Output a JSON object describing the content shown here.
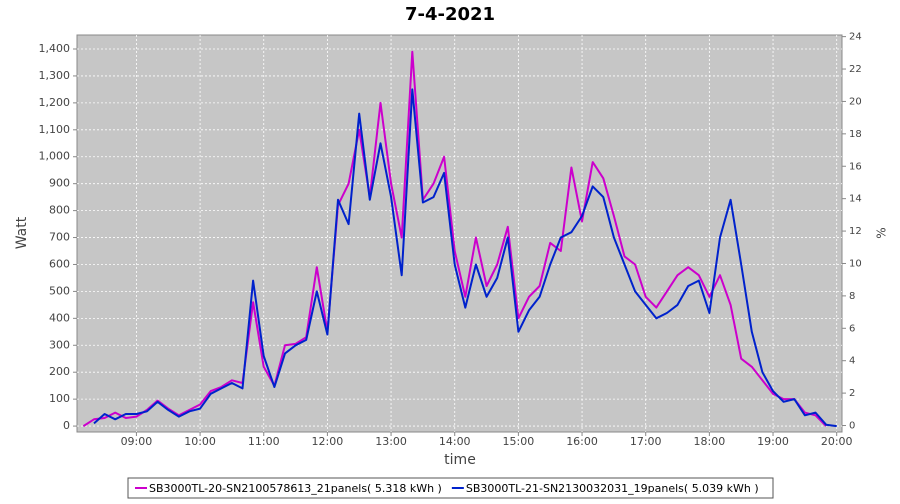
{
  "chart_data": {
    "type": "line",
    "title": "7-4-2021",
    "x_label": "time",
    "y_label": "Watt",
    "y2_label": "%",
    "x": [
      "08:10",
      "08:20",
      "08:30",
      "08:40",
      "08:50",
      "09:00",
      "09:10",
      "09:20",
      "09:30",
      "09:40",
      "09:50",
      "10:00",
      "10:10",
      "10:20",
      "10:30",
      "10:40",
      "10:50",
      "11:00",
      "11:10",
      "11:20",
      "11:30",
      "11:40",
      "11:50",
      "12:00",
      "12:10",
      "12:20",
      "12:30",
      "12:40",
      "12:50",
      "13:00",
      "13:10",
      "13:20",
      "13:30",
      "13:40",
      "13:50",
      "14:00",
      "14:10",
      "14:20",
      "14:30",
      "14:40",
      "14:50",
      "15:00",
      "15:10",
      "15:20",
      "15:30",
      "15:40",
      "15:50",
      "16:00",
      "16:10",
      "16:20",
      "16:30",
      "16:40",
      "16:50",
      "17:00",
      "17:10",
      "17:20",
      "17:30",
      "17:40",
      "17:50",
      "18:00",
      "18:10",
      "18:20",
      "18:30",
      "18:40",
      "18:50",
      "19:00",
      "19:10",
      "19:20",
      "19:30",
      "19:40",
      "19:50",
      "20:00"
    ],
    "series": [
      {
        "name": "SB3000TL-20-SN2100578613_21panels( 5.318 kWh )",
        "color": "#cc00cc",
        "values": [
          0,
          25,
          30,
          50,
          30,
          35,
          60,
          95,
          65,
          40,
          60,
          80,
          130,
          145,
          170,
          160,
          460,
          220,
          150,
          300,
          305,
          330,
          590,
          350,
          820,
          900,
          1100,
          850,
          1200,
          900,
          700,
          1390,
          840,
          900,
          1000,
          650,
          480,
          700,
          520,
          600,
          740,
          400,
          480,
          520,
          680,
          650,
          960,
          760,
          980,
          920,
          780,
          630,
          600,
          480,
          440,
          500,
          560,
          590,
          560,
          480,
          560,
          450,
          250,
          220,
          170,
          120,
          100,
          100,
          50,
          40,
          0,
          null
        ]
      },
      {
        "name": "SB3000TL-21-SN2130032031_19panels( 5.039 kWh )",
        "color": "#0022cc",
        "values": [
          null,
          10,
          45,
          25,
          45,
          45,
          55,
          90,
          60,
          35,
          55,
          65,
          120,
          140,
          160,
          140,
          540,
          260,
          145,
          270,
          300,
          320,
          500,
          340,
          840,
          750,
          1160,
          840,
          1050,
          850,
          560,
          1250,
          830,
          850,
          940,
          600,
          440,
          600,
          480,
          550,
          700,
          350,
          430,
          480,
          600,
          700,
          720,
          780,
          890,
          850,
          700,
          600,
          500,
          450,
          400,
          420,
          450,
          520,
          540,
          420,
          700,
          840,
          600,
          350,
          200,
          130,
          90,
          100,
          40,
          50,
          5,
          0
        ]
      }
    ],
    "xlim": [
      "08:04",
      "20:05"
    ],
    "xticks": [
      "09:00",
      "10:00",
      "11:00",
      "12:00",
      "13:00",
      "14:00",
      "15:00",
      "16:00",
      "17:00",
      "18:00",
      "19:00",
      "20:00"
    ],
    "ylim": [
      -22,
      1452
    ],
    "yticks": [
      0,
      100,
      200,
      300,
      400,
      500,
      600,
      700,
      800,
      900,
      {
        "value": 1000,
        "label": "1,000"
      },
      {
        "value": 1100,
        "label": "1,100"
      },
      {
        "value": 1200,
        "label": "1,200"
      },
      {
        "value": 1300,
        "label": "1,300"
      },
      {
        "value": 1400,
        "label": "1,400"
      }
    ],
    "y2lim": [
      -0.4,
      24.1
    ],
    "y2ticks": [
      0,
      2,
      4,
      6,
      8,
      10,
      12,
      14,
      16,
      18,
      20,
      22,
      24
    ],
    "grid": true
  }
}
